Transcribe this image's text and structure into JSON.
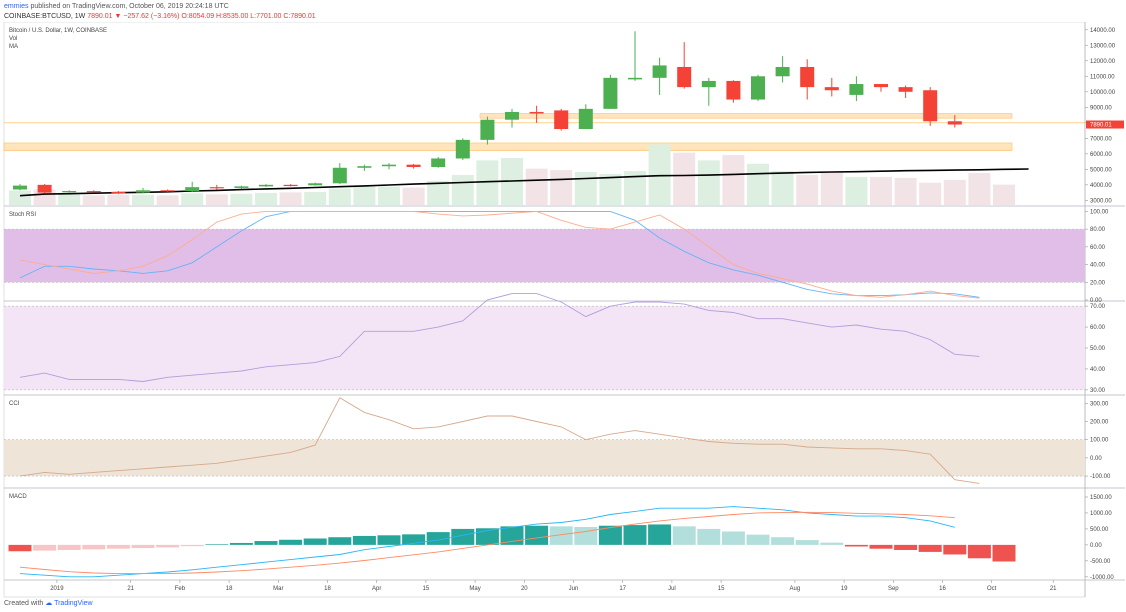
{
  "header": {
    "user": "emmies",
    "published": "published on TradingView.com, October 06, 2019 20:24:18 UTC",
    "symbol": "COINBASE:BTCUSD, 1W",
    "last": "7890.01",
    "arrow": "▼",
    "change": "−257.62 (−3.16%)",
    "ohlc": "O:8054.09 H:8535.00 L:7701.00 C:7890.01"
  },
  "footer": {
    "created": "Created with",
    "brand": "TradingView"
  },
  "colors": {
    "up": "#4caf50",
    "down": "#f44336",
    "grid": "#e0e3eb",
    "stoch_band": "#e1bee7",
    "rsi_band": "#f3e5f5",
    "cci_band": "#efe4d8",
    "ma": "#000000",
    "zone": "#ffe0b2",
    "macd_pos": "#26a69a",
    "macd_pos_light": "#b2dfdb",
    "macd_neg": "#ef5350",
    "macd_neg_light": "#f7c5c5"
  },
  "chart_data": [
    {
      "type": "candlestick",
      "panel": "price",
      "labels": [
        "Bitcoin / U.S. Dollar, 1W, COINBASE",
        "Vol",
        "MA"
      ],
      "y_ticks": [
        "14000.00",
        "13000.00",
        "12000.00",
        "11000.00",
        "10000.00",
        "9000.00",
        "8000.00",
        "7000.00",
        "6000.00",
        "5000.00",
        "4000.00",
        "3000.00"
      ],
      "last_price_label": "7890.01",
      "ylim": [
        2700,
        14500
      ],
      "x_ticks": [
        {
          "i": 1.5,
          "label": "2019"
        },
        {
          "i": 4.5,
          "label": "21"
        },
        {
          "i": 6.5,
          "label": "Feb"
        },
        {
          "i": 8.5,
          "label": "18"
        },
        {
          "i": 10.5,
          "label": "Mar"
        },
        {
          "i": 12.5,
          "label": "18"
        },
        {
          "i": 14.5,
          "label": "Apr"
        },
        {
          "i": 16.5,
          "label": "15"
        },
        {
          "i": 18.5,
          "label": "May"
        },
        {
          "i": 20.5,
          "label": "20"
        },
        {
          "i": 22.5,
          "label": "Jun"
        },
        {
          "i": 24.5,
          "label": "17"
        },
        {
          "i": 26.5,
          "label": "Jul"
        },
        {
          "i": 28.5,
          "label": "15"
        },
        {
          "i": 31.5,
          "label": "Aug"
        },
        {
          "i": 33.5,
          "label": "19"
        },
        {
          "i": 35.5,
          "label": "Sep"
        },
        {
          "i": 37.5,
          "label": "16"
        },
        {
          "i": 39.5,
          "label": "Oct"
        },
        {
          "i": 42,
          "label": "21"
        }
      ],
      "candles": [
        [
          3700,
          4050,
          3650,
          3950
        ],
        [
          4000,
          4050,
          3450,
          3500
        ],
        [
          3550,
          3650,
          3500,
          3600
        ],
        [
          3600,
          3650,
          3500,
          3550
        ],
        [
          3550,
          3600,
          3400,
          3450
        ],
        [
          3500,
          3800,
          3450,
          3650
        ],
        [
          3650,
          3700,
          3550,
          3600
        ],
        [
          3600,
          4200,
          3550,
          3850
        ],
        [
          3850,
          4000,
          3700,
          3800
        ],
        [
          3800,
          3950,
          3750,
          3900
        ],
        [
          3900,
          4050,
          3850,
          4000
        ],
        [
          4000,
          4050,
          3900,
          3970
        ],
        [
          3970,
          4150,
          3950,
          4100
        ],
        [
          4100,
          5400,
          4050,
          5100
        ],
        [
          5100,
          5300,
          4900,
          5200
        ],
        [
          5200,
          5400,
          5000,
          5300
        ],
        [
          5300,
          5350,
          5050,
          5150
        ],
        [
          5150,
          5800,
          5100,
          5700
        ],
        [
          5700,
          7000,
          5600,
          6900
        ],
        [
          6900,
          8400,
          6600,
          8200
        ],
        [
          8200,
          8900,
          7700,
          8700
        ],
        [
          8700,
          9100,
          8000,
          8600
        ],
        [
          8800,
          8900,
          7500,
          7600
        ],
        [
          7600,
          9200,
          7600,
          8900
        ],
        [
          8900,
          11100,
          8900,
          10900
        ],
        [
          10800,
          13900,
          10700,
          10900
        ],
        [
          10900,
          12200,
          9800,
          11700
        ],
        [
          11600,
          13200,
          10200,
          10300
        ],
        [
          10300,
          10900,
          9100,
          10700
        ],
        [
          10700,
          10750,
          9300,
          9500
        ],
        [
          9500,
          11100,
          9400,
          11000
        ],
        [
          11000,
          12300,
          10600,
          11600
        ],
        [
          11600,
          12100,
          9500,
          10300
        ],
        [
          10300,
          10900,
          9700,
          10100
        ],
        [
          9800,
          11000,
          9400,
          10500
        ],
        [
          10500,
          10500,
          10000,
          10300
        ],
        [
          10300,
          10400,
          9600,
          10000
        ],
        [
          10100,
          10300,
          7800,
          8100
        ],
        [
          8100,
          8500,
          7700,
          7890
        ]
      ],
      "volume": [
        30,
        32,
        22,
        20,
        21,
        21,
        20,
        24,
        22,
        23,
        25,
        26,
        27,
        34,
        40,
        38,
        36,
        50,
        62,
        92,
        97,
        75,
        72,
        68,
        64,
        70,
        125,
        108,
        92,
        103,
        85,
        70,
        62,
        68,
        58,
        58,
        56,
        46,
        52,
        66,
        42
      ],
      "ma_values": [
        3300,
        3400,
        3430,
        3460,
        3490,
        3520,
        3550,
        3600,
        3640,
        3690,
        3740,
        3780,
        3830,
        3880,
        3930,
        3990,
        4050,
        4100,
        4150,
        4200,
        4250,
        4300,
        4350,
        4410,
        4470,
        4530,
        4590,
        4600,
        4630,
        4670,
        4720,
        4760,
        4800,
        4830,
        4850,
        4880,
        4910,
        4930,
        4950,
        4970,
        5000,
        5020
      ],
      "zones": [
        [
          8300,
          8600
        ],
        [
          6200,
          6700
        ]
      ],
      "hline": 8000
    },
    {
      "type": "line",
      "panel": "Stoch RSI",
      "y_ticks": [
        "100.00",
        "80.00",
        "60.00",
        "40.00",
        "20.00",
        "0.00"
      ],
      "ylim": [
        0,
        105
      ],
      "band": [
        20,
        80
      ],
      "series": [
        {
          "values": [
            25,
            38,
            38,
            35,
            33,
            30,
            33,
            42,
            60,
            78,
            94,
            100,
            100,
            100,
            100,
            100,
            100,
            100,
            100,
            100,
            100,
            100,
            100,
            100,
            100,
            90,
            70,
            55,
            42,
            34,
            28,
            20,
            12,
            7,
            5,
            5,
            6,
            8,
            7,
            3
          ]
        },
        {
          "values": [
            45,
            40,
            35,
            30,
            33,
            38,
            50,
            68,
            88,
            97,
            100,
            100,
            100,
            100,
            100,
            100,
            100,
            97,
            95,
            96,
            98,
            100,
            90,
            82,
            80,
            88,
            96,
            80,
            60,
            40,
            30,
            24,
            18,
            10,
            5,
            3,
            6,
            10,
            5,
            2
          ]
        }
      ]
    },
    {
      "type": "line",
      "panel": "RSI",
      "y_ticks": [
        "70.00",
        "60.00",
        "50.00",
        "40.00",
        "30.00"
      ],
      "ylim": [
        28,
        72
      ],
      "band": [
        30,
        70
      ],
      "series": [
        {
          "values": [
            36,
            38,
            35,
            35,
            35,
            34,
            36,
            37,
            38,
            39,
            41,
            42,
            43,
            46,
            58,
            58,
            58,
            60,
            63,
            73,
            76,
            76,
            72,
            65,
            70,
            72,
            72,
            71,
            68,
            67,
            64,
            64,
            62,
            60,
            61,
            59,
            58,
            54,
            47,
            46
          ]
        }
      ]
    },
    {
      "type": "line",
      "panel": "CCI",
      "y_ticks": [
        "300.00",
        "200.00",
        "100.00",
        "0.00",
        "-100.00"
      ],
      "ylim": [
        -160,
        340
      ],
      "band": [
        -100,
        100
      ],
      "series": [
        {
          "values": [
            -100,
            -80,
            -90,
            -80,
            -70,
            -60,
            -50,
            -40,
            -30,
            -10,
            10,
            30,
            70,
            330,
            250,
            210,
            160,
            170,
            200,
            230,
            230,
            200,
            170,
            100,
            130,
            150,
            130,
            110,
            90,
            80,
            75,
            75,
            60,
            55,
            50,
            50,
            40,
            20,
            -120,
            -140
          ]
        }
      ]
    },
    {
      "type": "bar",
      "panel": "MACD",
      "y_ticks": [
        "1500.00",
        "1000.00",
        "500.00",
        "0.00",
        "-500.00",
        "-1000.00"
      ],
      "ylim": [
        -1100,
        1750
      ],
      "histogram": [
        -200,
        -180,
        -160,
        -140,
        -120,
        -100,
        -80,
        -40,
        20,
        60,
        120,
        160,
        200,
        240,
        280,
        300,
        330,
        400,
        500,
        520,
        580,
        600,
        580,
        560,
        600,
        620,
        640,
        580,
        500,
        420,
        320,
        240,
        150,
        70,
        -50,
        -120,
        -160,
        -220,
        -300,
        -420,
        -520
      ],
      "series": [
        {
          "values": [
            -900,
            -950,
            -1000,
            -1000,
            -950,
            -900,
            -850,
            -780,
            -700,
            -620,
            -540,
            -460,
            -380,
            -300,
            -150,
            -50,
            50,
            150,
            300,
            450,
            550,
            650,
            700,
            800,
            950,
            1050,
            1150,
            1150,
            1150,
            1200,
            1150,
            1100,
            1000,
            950,
            900,
            900,
            850,
            750,
            550
          ]
        },
        {
          "values": [
            -700,
            -770,
            -840,
            -880,
            -900,
            -900,
            -900,
            -880,
            -850,
            -810,
            -760,
            -700,
            -640,
            -570,
            -490,
            -400,
            -310,
            -220,
            -110,
            0,
            110,
            220,
            320,
            420,
            540,
            650,
            750,
            830,
            890,
            950,
            1000,
            1010,
            1020,
            1010,
            990,
            970,
            950,
            910,
            850
          ]
        }
      ]
    }
  ]
}
